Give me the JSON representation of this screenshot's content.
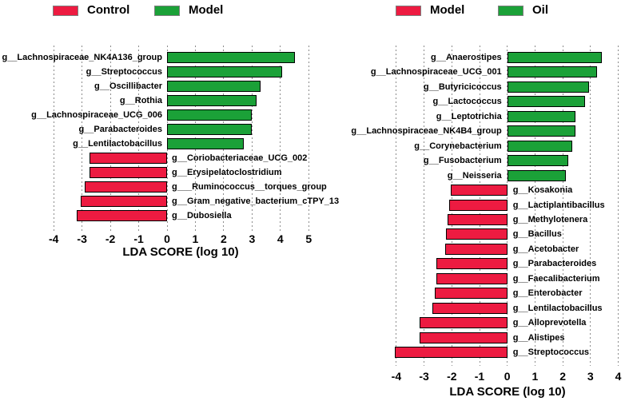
{
  "colors": {
    "red": "#ED1B41",
    "green": "#1BA138",
    "grid": "#8C8C8C"
  },
  "chart_data": [
    {
      "type": "bar",
      "orientation": "horizontal",
      "title": "",
      "xlabel": "LDA SCORE (log 10)",
      "xticks": [
        -4,
        -3,
        -2,
        -1,
        0,
        1,
        2,
        3,
        4,
        5
      ],
      "xlim": [
        -4,
        5
      ],
      "grid": "dashed-vertical",
      "legend_position": "top",
      "legend": [
        {
          "label": "Control",
          "color": "#ED1B41"
        },
        {
          "label": "Model",
          "color": "#1BA138"
        }
      ],
      "bars": [
        {
          "taxon": "g__Lachnospiraceae_NK4A136_group",
          "lda": 4.5,
          "group": "Model"
        },
        {
          "taxon": "g__Streptococcus",
          "lda": 4.05,
          "group": "Model"
        },
        {
          "taxon": "g__Oscillibacter",
          "lda": 3.3,
          "group": "Model"
        },
        {
          "taxon": "g__Rothia",
          "lda": 3.15,
          "group": "Model"
        },
        {
          "taxon": "g__Lachnospiraceae_UCG_006",
          "lda": 3.0,
          "group": "Model"
        },
        {
          "taxon": "g__Parabacteroides",
          "lda": 3.0,
          "group": "Model"
        },
        {
          "taxon": "g__Lentilactobacillus",
          "lda": 2.7,
          "group": "Model"
        },
        {
          "taxon": "g__Coriobacteriaceae_UCG_002",
          "lda": -2.75,
          "group": "Control"
        },
        {
          "taxon": "g__Erysipelatoclostridium",
          "lda": -2.75,
          "group": "Control"
        },
        {
          "taxon": "g___Ruminococcus__torques_group",
          "lda": -2.9,
          "group": "Control"
        },
        {
          "taxon": "g__Gram_negative_bacterium_cTPY_13",
          "lda": -3.05,
          "group": "Control"
        },
        {
          "taxon": "g__Dubosiella",
          "lda": -3.2,
          "group": "Control"
        }
      ]
    },
    {
      "type": "bar",
      "orientation": "horizontal",
      "title": "",
      "xlabel": "LDA SCORE (log 10)",
      "xticks": [
        -4,
        -3,
        -2,
        -1,
        0,
        1,
        2,
        3,
        4
      ],
      "xlim": [
        -4,
        4
      ],
      "grid": "dashed-vertical",
      "legend_position": "top",
      "legend": [
        {
          "label": "Model",
          "color": "#ED1B41"
        },
        {
          "label": "Oil",
          "color": "#1BA138"
        }
      ],
      "bars": [
        {
          "taxon": "g__Anaerostipes",
          "lda": 3.4,
          "group": "Oil"
        },
        {
          "taxon": "g__Lachnospiraceae_UCG_001",
          "lda": 3.25,
          "group": "Oil"
        },
        {
          "taxon": "g__Butyricicoccus",
          "lda": 2.95,
          "group": "Oil"
        },
        {
          "taxon": "g__Lactococcus",
          "lda": 2.8,
          "group": "Oil"
        },
        {
          "taxon": "g__Leptotrichia",
          "lda": 2.45,
          "group": "Oil"
        },
        {
          "taxon": "g__Lachnospiraceae_NK4B4_group",
          "lda": 2.45,
          "group": "Oil"
        },
        {
          "taxon": "g__Corynebacterium",
          "lda": 2.35,
          "group": "Oil"
        },
        {
          "taxon": "g__Fusobacterium",
          "lda": 2.2,
          "group": "Oil"
        },
        {
          "taxon": "g__Neisseria",
          "lda": 2.1,
          "group": "Oil"
        },
        {
          "taxon": "g__Kosakonia",
          "lda": -2.05,
          "group": "Model"
        },
        {
          "taxon": "g__Lactiplantibacillus",
          "lda": -2.1,
          "group": "Model"
        },
        {
          "taxon": "g__Methylotenera",
          "lda": -2.15,
          "group": "Model"
        },
        {
          "taxon": "g__Bacillus",
          "lda": -2.2,
          "group": "Model"
        },
        {
          "taxon": "g__Acetobacter",
          "lda": -2.25,
          "group": "Model"
        },
        {
          "taxon": "g__Parabacteroides",
          "lda": -2.55,
          "group": "Model"
        },
        {
          "taxon": "g__Faecalibacterium",
          "lda": -2.55,
          "group": "Model"
        },
        {
          "taxon": "g__Enterobacter",
          "lda": -2.6,
          "group": "Model"
        },
        {
          "taxon": "g__Lentilactobacillus",
          "lda": -2.7,
          "group": "Model"
        },
        {
          "taxon": "g__Alloprevotella",
          "lda": -3.15,
          "group": "Model"
        },
        {
          "taxon": "g__Alistipes",
          "lda": -3.15,
          "group": "Model"
        },
        {
          "taxon": "g__Streptococcus",
          "lda": -4.05,
          "group": "Model"
        }
      ]
    }
  ]
}
